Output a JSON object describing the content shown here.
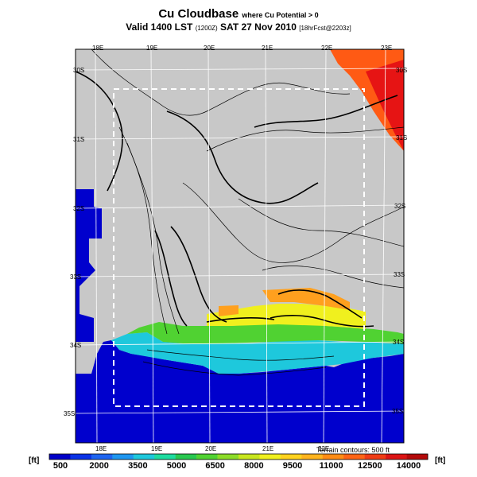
{
  "title": {
    "main": "Cu Cloudbase",
    "sub": "where Cu Potential > 0",
    "valid_prefix": "Valid 1400 LST",
    "valid_utc": "(1200Z)",
    "valid_date": "SAT 27 Nov 2010",
    "forecast": "[18hrFcst@2203z]"
  },
  "axes": {
    "lon_top": [
      "18E",
      "19E",
      "20E",
      "21E",
      "22E",
      "23E"
    ],
    "lon_bottom": [
      "18E",
      "19E",
      "20E",
      "21E",
      "22E"
    ],
    "lat_right": [
      "30S",
      "31S",
      "32S",
      "33S",
      "34S",
      "35S"
    ],
    "lat_left": [
      "30S",
      "31S",
      "32S",
      "33S",
      "34S",
      "35S"
    ]
  },
  "terrain_note": "Terrain contours: 500 ft",
  "colorbar": {
    "unit_left": "[ft]",
    "unit_right": "[ft]",
    "ticks": [
      "500",
      "2000",
      "3500",
      "5000",
      "6500",
      "8000",
      "9500",
      "11000",
      "12500",
      "14000"
    ],
    "colors": [
      "#0000c8",
      "#0a32e6",
      "#1e64f0",
      "#1e96f0",
      "#1ec8dc",
      "#1edca0",
      "#28c850",
      "#50d232",
      "#8cdc28",
      "#c8e61e",
      "#f0f01e",
      "#ffd21e",
      "#ffb41e",
      "#ff8c14",
      "#ff6414",
      "#f03c14",
      "#dc1414",
      "#b40a0a"
    ]
  },
  "colors": {
    "land": "#c8c8c8",
    "background": "#ffffff"
  }
}
